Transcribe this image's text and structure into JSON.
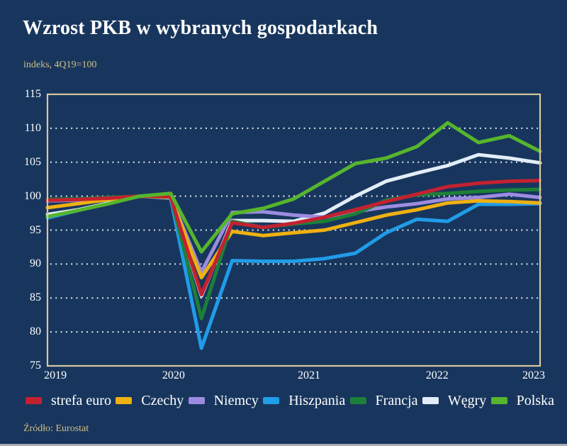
{
  "header": {
    "title": "Wzrost PKB w wybranych gospodarkach",
    "subtitle": "indeks, 4Q19=100"
  },
  "source": {
    "text": "Źródło: Eurostat"
  },
  "colors": {
    "background": "#18365d",
    "frame": "#d8c79e",
    "gridline": "#ffffff",
    "axis_text": "#ffffff",
    "muted_text": "#d3bd85"
  },
  "chart_data": {
    "type": "line",
    "title": "Wzrost PKB w wybranych gospodarkach",
    "subtitle": "indeks, 4Q19=100",
    "source": "Źródło: Eurostat",
    "grid": "horizontal-dotted",
    "legend_position": "bottom",
    "ylim": [
      75,
      115
    ],
    "y_ticks": [
      75,
      80,
      85,
      90,
      95,
      100,
      105,
      110,
      115
    ],
    "x_tick_labels": [
      "2019",
      "2020",
      "2021",
      "2022",
      "2023"
    ],
    "x": [
      "1Q19",
      "2Q19",
      "3Q19",
      "4Q19",
      "1Q20",
      "2Q20",
      "3Q20",
      "4Q20",
      "1Q21",
      "2Q21",
      "3Q21",
      "4Q21",
      "1Q22",
      "2Q22",
      "3Q22",
      "4Q22",
      "1Q23"
    ],
    "series": [
      {
        "name": "strefa euro",
        "color": "#c42130",
        "values": [
          99.4,
          99.5,
          99.7,
          100.0,
          99.9,
          85.5,
          96.1,
          95.4,
          96.0,
          96.9,
          98.0,
          99.2,
          100.3,
          101.4,
          101.9,
          102.2,
          102.3
        ]
      },
      {
        "name": "Czechy",
        "color": "#efb011",
        "values": [
          98.3,
          98.9,
          99.5,
          100.0,
          99.8,
          88.0,
          94.8,
          94.2,
          94.6,
          95.0,
          96.1,
          97.2,
          98.0,
          99.0,
          99.3,
          99.2,
          99.0
        ]
      },
      {
        "name": "Niemcy",
        "color": "#9c8ce0",
        "values": [
          99.3,
          99.4,
          99.5,
          100.0,
          99.9,
          88.8,
          97.6,
          97.7,
          97.2,
          96.9,
          97.7,
          98.4,
          98.9,
          99.6,
          99.8,
          100.3,
          99.8
        ]
      },
      {
        "name": "Hiszpania",
        "color": "#219ce8",
        "values": [
          96.8,
          97.9,
          99.0,
          100.0,
          99.7,
          77.6,
          90.5,
          90.4,
          90.4,
          90.8,
          91.6,
          94.6,
          96.6,
          96.3,
          98.8,
          98.8,
          98.9
        ]
      },
      {
        "name": "Francja",
        "color": "#1d8038",
        "values": [
          99.5,
          99.6,
          99.8,
          100.0,
          100.0,
          82.0,
          96.3,
          95.4,
          95.9,
          96.3,
          97.4,
          99.4,
          100.2,
          100.4,
          100.7,
          100.9,
          101.0
        ]
      },
      {
        "name": "Węgry",
        "color": "#e2edf8",
        "values": [
          97.3,
          98.0,
          99.0,
          100.0,
          99.8,
          85.3,
          96.4,
          96.4,
          96.3,
          97.5,
          100.0,
          102.2,
          103.4,
          104.5,
          106.1,
          105.6,
          104.9
        ]
      },
      {
        "name": "Polska",
        "color": "#56b52c",
        "values": [
          97.0,
          97.9,
          98.9,
          100.0,
          100.4,
          91.8,
          97.4,
          98.2,
          99.6,
          102.2,
          104.8,
          105.6,
          107.3,
          110.8,
          107.9,
          108.9,
          106.6
        ]
      }
    ]
  }
}
